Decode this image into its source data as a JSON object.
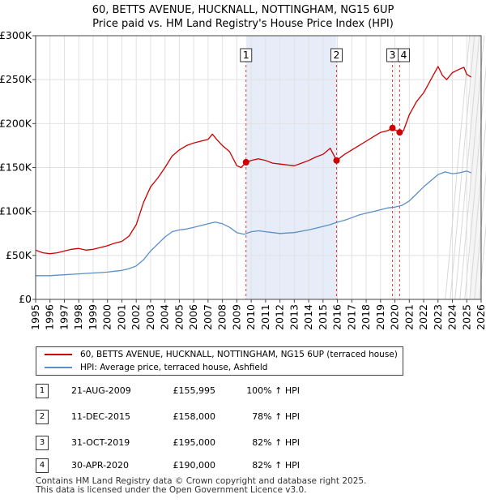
{
  "title": {
    "line1": "60, BETTS AVENUE, HUCKNALL, NOTTINGHAM, NG15 6UP",
    "line2": "Price paid vs. HM Land Registry's House Price Index (HPI)"
  },
  "legend": {
    "items": [
      {
        "label": "60, BETTS AVENUE, HUCKNALL, NOTTINGHAM, NG15 6UP (terraced house)",
        "color": "#cc0000"
      },
      {
        "label": "HPI: Average price, terraced house, Ashfield",
        "color": "#5b8fc8"
      }
    ]
  },
  "sales": [
    {
      "num": "1",
      "date": "21-AUG-2009",
      "price": "£155,995",
      "hpi": "100% ↑ HPI"
    },
    {
      "num": "2",
      "date": "11-DEC-2015",
      "price": "£158,000",
      "hpi": "78% ↑ HPI"
    },
    {
      "num": "3",
      "date": "31-OCT-2019",
      "price": "£195,000",
      "hpi": "82% ↑ HPI"
    },
    {
      "num": "4",
      "date": "30-APR-2020",
      "price": "£190,000",
      "hpi": "82% ↑ HPI"
    }
  ],
  "footer": {
    "line1": "Contains HM Land Registry data © Crown copyright and database right 2025.",
    "line2": "This data is licensed under the Open Government Licence v3.0."
  },
  "chart_data": {
    "type": "line",
    "title": "60, BETTS AVENUE, HUCKNALL, NOTTINGHAM, NG15 6UP",
    "subtitle": "Price paid vs. HM Land Registry's House Price Index (HPI)",
    "xlim": [
      1995,
      2026
    ],
    "ylim": [
      0,
      300000
    ],
    "x_ticks": [
      "1995",
      "1996",
      "1997",
      "1998",
      "1999",
      "2000",
      "2001",
      "2002",
      "2003",
      "2004",
      "2005",
      "2006",
      "2007",
      "2008",
      "2009",
      "2010",
      "2011",
      "2012",
      "2013",
      "2014",
      "2015",
      "2016",
      "2017",
      "2018",
      "2019",
      "2020",
      "2021",
      "2022",
      "2023",
      "2024",
      "2025",
      "2026"
    ],
    "y_ticks": [
      {
        "value": 0,
        "label": "£0"
      },
      {
        "value": 50000,
        "label": "£50K"
      },
      {
        "value": 100000,
        "label": "£100K"
      },
      {
        "value": 150000,
        "label": "£150K"
      },
      {
        "value": 200000,
        "label": "£200K"
      },
      {
        "value": 250000,
        "label": "£250K"
      },
      {
        "value": 300000,
        "label": "£300K"
      }
    ],
    "grid": true,
    "shaded_period": [
      2009.64,
      2015.94
    ],
    "forecast_start": 2025.2,
    "series": [
      {
        "name": "60, BETTS AVENUE, HUCKNALL, NOTTINGHAM, NG15 6UP (terraced house)",
        "color": "#cc0000",
        "x": [
          1995.0,
          1995.5,
          1996.0,
          1996.5,
          1997.0,
          1997.5,
          1998.0,
          1998.5,
          1999.0,
          1999.5,
          2000.0,
          2000.5,
          2001.0,
          2001.5,
          2002.0,
          2002.5,
          2003.0,
          2003.5,
          2004.0,
          2004.5,
          2005.0,
          2005.5,
          2006.0,
          2006.5,
          2007.0,
          2007.3,
          2007.6,
          2008.0,
          2008.5,
          2009.0,
          2009.3,
          2009.64,
          2010.0,
          2010.5,
          2011.0,
          2011.5,
          2012.0,
          2012.5,
          2013.0,
          2013.5,
          2014.0,
          2014.5,
          2015.0,
          2015.5,
          2015.94,
          2016.5,
          2017.0,
          2017.5,
          2018.0,
          2018.5,
          2019.0,
          2019.5,
          2019.83,
          2020.0,
          2020.33,
          2020.6,
          2021.0,
          2021.5,
          2022.0,
          2022.5,
          2023.0,
          2023.3,
          2023.6,
          2024.0,
          2024.5,
          2024.8,
          2025.0,
          2025.3
        ],
        "y": [
          56000,
          53000,
          52000,
          53000,
          55000,
          57000,
          58000,
          56000,
          57000,
          59000,
          61000,
          64000,
          66000,
          72000,
          85000,
          110000,
          128000,
          138000,
          150000,
          163000,
          170000,
          175000,
          178000,
          180000,
          182000,
          188000,
          182000,
          175000,
          168000,
          152000,
          150000,
          155995,
          158000,
          160000,
          158000,
          155000,
          154000,
          153000,
          152000,
          155000,
          158000,
          162000,
          165000,
          172000,
          158000,
          165000,
          170000,
          175000,
          180000,
          185000,
          190000,
          192000,
          195000,
          193000,
          190000,
          192000,
          210000,
          225000,
          235000,
          250000,
          265000,
          255000,
          250000,
          258000,
          262000,
          264000,
          256000,
          253000
        ]
      },
      {
        "name": "HPI: Average price, terraced house, Ashfield",
        "color": "#5b8fc8",
        "x": [
          1995.0,
          1995.5,
          1996.0,
          1996.5,
          1997.0,
          1997.5,
          1998.0,
          1998.5,
          1999.0,
          1999.5,
          2000.0,
          2000.5,
          2001.0,
          2001.5,
          2002.0,
          2002.5,
          2003.0,
          2003.5,
          2004.0,
          2004.5,
          2005.0,
          2005.5,
          2006.0,
          2006.5,
          2007.0,
          2007.5,
          2008.0,
          2008.5,
          2009.0,
          2009.5,
          2010.0,
          2010.5,
          2011.0,
          2011.5,
          2012.0,
          2012.5,
          2013.0,
          2013.5,
          2014.0,
          2014.5,
          2015.0,
          2015.5,
          2016.0,
          2016.5,
          2017.0,
          2017.5,
          2018.0,
          2018.5,
          2019.0,
          2019.5,
          2020.0,
          2020.5,
          2021.0,
          2021.5,
          2022.0,
          2022.5,
          2023.0,
          2023.5,
          2024.0,
          2024.5,
          2025.0,
          2025.3
        ],
        "y": [
          27000,
          27000,
          27000,
          27500,
          28000,
          28500,
          29000,
          29500,
          30000,
          30500,
          31000,
          32000,
          33000,
          35000,
          38000,
          45000,
          55000,
          63000,
          71000,
          77000,
          79000,
          80000,
          82000,
          84000,
          86000,
          88000,
          86000,
          82000,
          76000,
          74000,
          77000,
          78000,
          77000,
          76000,
          75000,
          75500,
          76000,
          77500,
          79000,
          81000,
          83000,
          85000,
          88000,
          90000,
          93000,
          96000,
          98000,
          100000,
          102000,
          104000,
          105000,
          107000,
          112000,
          120000,
          128000,
          135000,
          142000,
          145000,
          143000,
          144000,
          146000,
          144000
        ]
      }
    ],
    "annotations": [
      {
        "label": "1",
        "x": 2009.64,
        "y": 155995
      },
      {
        "label": "2",
        "x": 2015.94,
        "y": 158000
      },
      {
        "label": "3",
        "x": 2019.83,
        "y": 195000
      },
      {
        "label": "4",
        "x": 2020.33,
        "y": 190000
      }
    ]
  }
}
